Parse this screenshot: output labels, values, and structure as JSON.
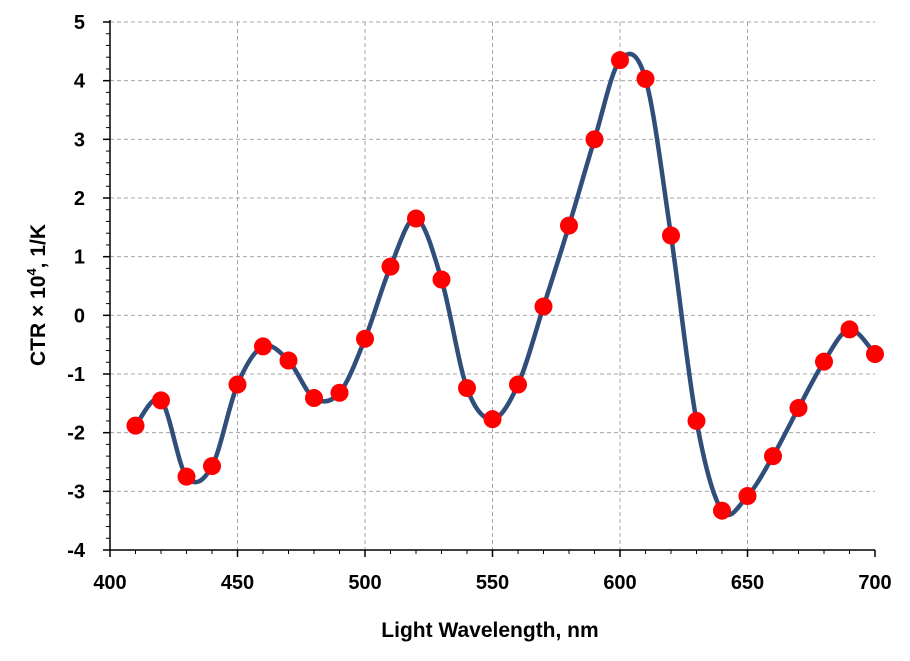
{
  "chart_data": {
    "type": "line",
    "title": "",
    "xlabel": "Light Wavelength, nm",
    "ylabel_main": "CTR × 10",
    "ylabel_sup": "4",
    "ylabel_tail": ", 1/K",
    "xlim": [
      400,
      700
    ],
    "ylim": [
      -4,
      5
    ],
    "xticks": [
      400,
      450,
      500,
      550,
      600,
      650,
      700
    ],
    "yticks": [
      -4,
      -3,
      -2,
      -1,
      0,
      1,
      2,
      3,
      4,
      5
    ],
    "grid": true,
    "legend": "none",
    "series": [
      {
        "x": [
          410,
          420,
          430,
          440,
          450,
          460,
          470,
          480,
          490,
          500,
          510,
          520,
          530,
          540,
          550,
          560,
          570,
          580,
          590,
          600,
          610,
          620,
          630,
          640,
          650,
          660,
          670,
          680,
          690,
          700
        ],
        "y": [
          -1.88,
          -1.45,
          -2.75,
          -2.57,
          -1.18,
          -0.53,
          -0.77,
          -1.41,
          -1.32,
          -0.4,
          0.83,
          1.65,
          0.61,
          -1.24,
          -1.77,
          -1.18,
          0.15,
          1.53,
          3.0,
          4.35,
          4.03,
          1.36,
          -1.8,
          -3.33,
          -3.08,
          -2.4,
          -1.58,
          -0.79,
          -0.24,
          -0.66
        ],
        "line_color": "#2f4f7a",
        "marker_color": "#ff0000"
      }
    ]
  }
}
